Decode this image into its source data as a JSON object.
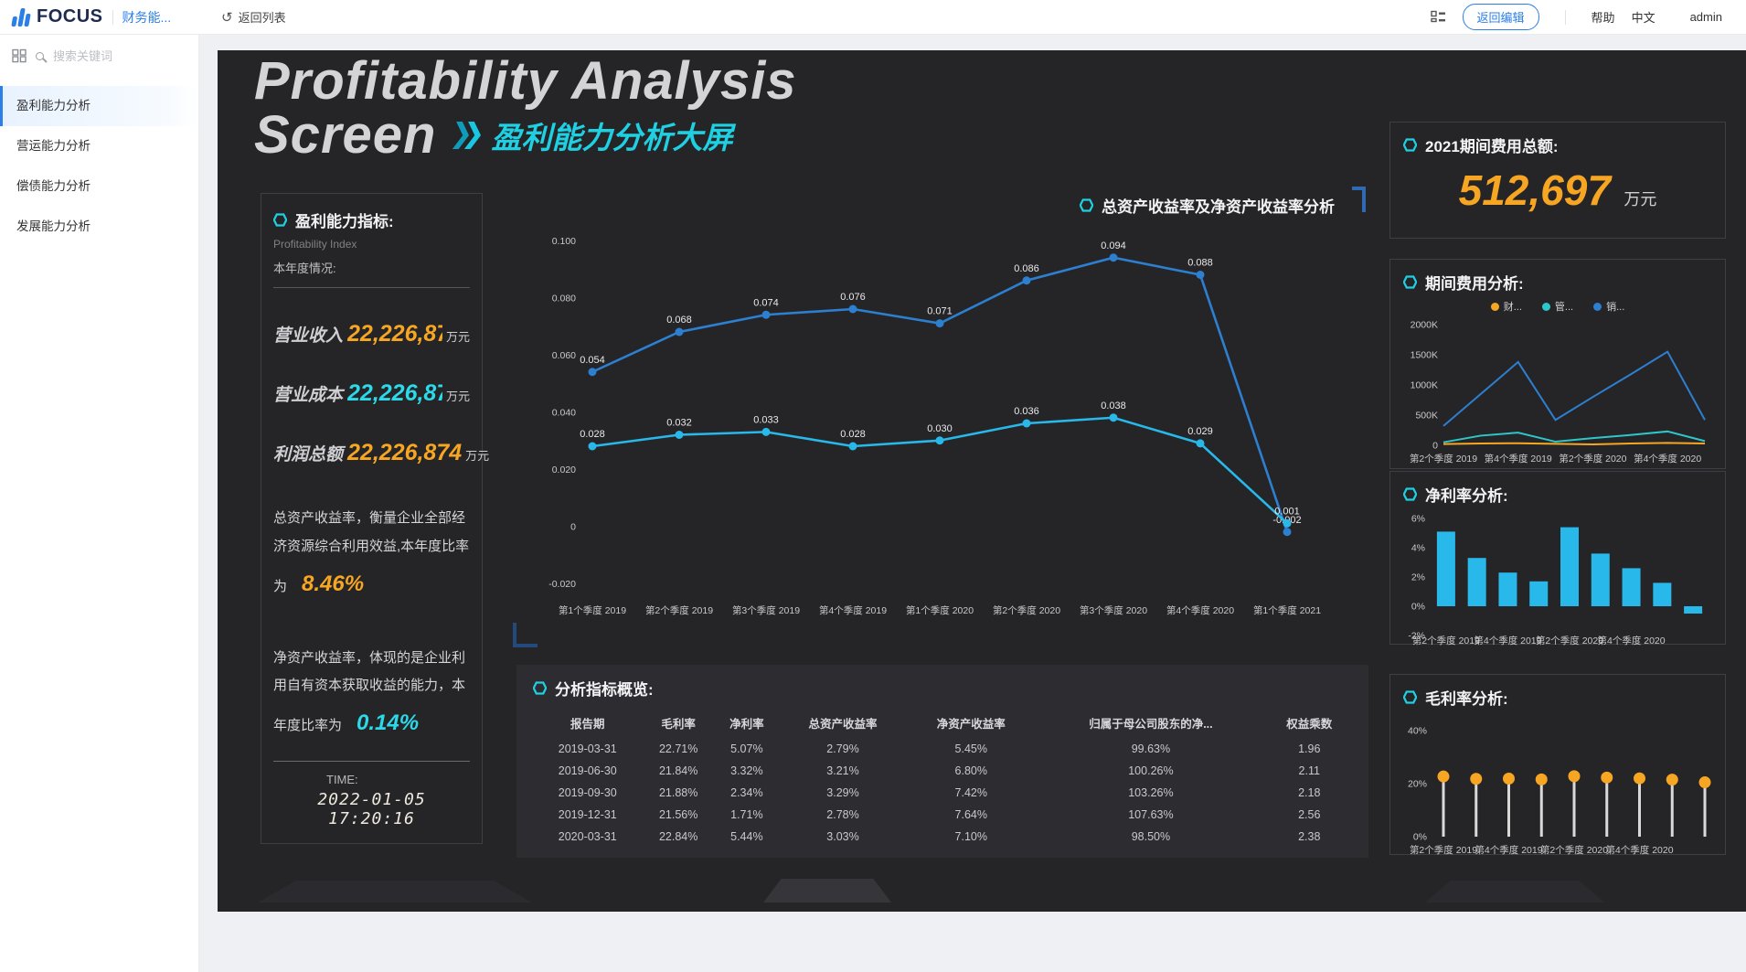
{
  "colors": {
    "accent_cyan": "#1fd0e2",
    "orange": "#f6a623",
    "line_blue": "#2d7fd0",
    "line_cyan": "#29b8ea",
    "line_teal": "#2ec7c9",
    "topbar_blue": "#2b7fe8"
  },
  "topbar": {
    "logo": "FOCUS",
    "workspace": "财务能...",
    "back_icon": "↺",
    "back_list": "返回列表",
    "edit_button": "返回编辑",
    "help": "帮助",
    "language": "中文",
    "user": "admin"
  },
  "sidebar": {
    "search_placeholder": "搜索关键词",
    "items": [
      {
        "label": "盈利能力分析",
        "active": true
      },
      {
        "label": "营运能力分析",
        "active": false
      },
      {
        "label": "偿债能力分析",
        "active": false
      },
      {
        "label": "发展能力分析",
        "active": false
      }
    ]
  },
  "dashboard": {
    "title_line1": "Profitability Analysis",
    "title_line2": "Screen",
    "subtitle_cn": "盈利能力分析大屏",
    "left_panel": {
      "title": "盈利能力指标:",
      "subtitle_en": "Profitability Index",
      "subtitle_cn": "本年度情况:",
      "metrics": [
        {
          "label": "营业收入",
          "value": "22,226,874",
          "unit": "万元"
        },
        {
          "label": "营业成本",
          "value": "22,226,874",
          "unit": "万元"
        },
        {
          "label": "利润总额",
          "value": "22,226,874",
          "unit": "万元"
        }
      ],
      "roa_text": "总资产收益率，衡量企业全部经济资源综合利用效益,本年度比率为",
      "roa_value": "8.46%",
      "roe_text": "净资产收益率，体现的是企业利用自有资本获取收益的能力，本年度比率为",
      "roe_value": "0.14%",
      "time_label": "TIME:",
      "time_value": "2022-01-05 17:20:16"
    },
    "main_chart_title": "总资产收益率及净资产收益率分析",
    "table": {
      "title": "分析指标概览:",
      "headers": [
        "报告期",
        "毛利率",
        "净利率",
        "总资产收益率",
        "净资产收益率",
        "归属于母公司股东的净...",
        "权益乘数"
      ],
      "rows": [
        [
          "2019-03-31",
          "22.71%",
          "5.07%",
          "2.79%",
          "5.45%",
          "99.63%",
          "1.96"
        ],
        [
          "2019-06-30",
          "21.84%",
          "3.32%",
          "3.21%",
          "6.80%",
          "100.26%",
          "2.11"
        ],
        [
          "2019-09-30",
          "21.88%",
          "2.34%",
          "3.29%",
          "7.42%",
          "103.26%",
          "2.18"
        ],
        [
          "2019-12-31",
          "21.56%",
          "1.71%",
          "2.78%",
          "7.64%",
          "107.63%",
          "2.56"
        ],
        [
          "2020-03-31",
          "22.84%",
          "5.44%",
          "3.03%",
          "7.10%",
          "98.50%",
          "2.38"
        ]
      ]
    },
    "right": {
      "total_title": "2021期间费用总额:",
      "total_value": "512,697",
      "total_unit": "万元",
      "expense_title": "期间费用分析:",
      "net_margin_title": "净利率分析:",
      "gross_margin_title": "毛利率分析:"
    }
  },
  "chart_data": [
    {
      "id": "roa-roe-lines",
      "type": "line",
      "title": "总资产收益率及净资产收益率分析",
      "categories": [
        "第1个季度 2019",
        "第2个季度 2019",
        "第3个季度 2019",
        "第4个季度 2019",
        "第1个季度 2020",
        "第2个季度 2020",
        "第3个季度 2020",
        "第4个季度 2020",
        "第1个季度 2021"
      ],
      "series": [
        {
          "name": "净资产收益率",
          "color": "#2d7fd0",
          "values": [
            0.054,
            0.068,
            0.074,
            0.076,
            0.071,
            0.086,
            0.094,
            0.088,
            -0.002
          ]
        },
        {
          "name": "总资产收益率",
          "color": "#29b8ea",
          "values": [
            0.028,
            0.032,
            0.033,
            0.028,
            0.03,
            0.036,
            0.038,
            0.029,
            0.001
          ]
        }
      ],
      "ylim": [
        -0.02,
        0.1
      ],
      "yticks": [
        "0.100",
        "0.080",
        "0.060",
        "0.040",
        "0.020",
        "0",
        "-0.020"
      ],
      "point_labels": true,
      "grid": false,
      "legend": "none"
    },
    {
      "id": "period-expenses",
      "type": "line",
      "title": "期间费用分析:",
      "x_tick_labels": [
        "第2个季度 2019",
        "第4个季度 2019",
        "第2个季度 2020",
        "第4个季度 2020"
      ],
      "unit": "K",
      "series": [
        {
          "name": "财务费用",
          "legend": "财...",
          "color": "#f6a623",
          "values": [
            20,
            30,
            35,
            25,
            15,
            30,
            40,
            30
          ]
        },
        {
          "name": "管理费用",
          "legend": "管...",
          "color": "#2ec7c9",
          "values": [
            50,
            160,
            210,
            60,
            120,
            170,
            230,
            70
          ]
        },
        {
          "name": "销售费用",
          "legend": "销...",
          "color": "#2d7fd0",
          "values": [
            320,
            850,
            1380,
            420,
            800,
            1170,
            1550,
            420
          ]
        }
      ],
      "ylim": [
        0,
        2000
      ],
      "yticks": [
        "2000K",
        "1500K",
        "1000K",
        "500K",
        "0"
      ],
      "grid": false,
      "legend_position": "top"
    },
    {
      "id": "net-margin-bars",
      "type": "bar",
      "title": "净利率分析:",
      "x_tick_labels": [
        "第2个季度 2019",
        "第4个季度 2019",
        "第2个季度 2020",
        "第4个季度 2020"
      ],
      "values": [
        5.1,
        3.3,
        2.3,
        1.7,
        5.4,
        3.6,
        2.6,
        1.6,
        -0.5
      ],
      "bar_color": "#29b8ea",
      "ylim": [
        -2,
        6
      ],
      "yticks": [
        "6%",
        "4%",
        "2%",
        "0%",
        "-2%"
      ],
      "grid": false
    },
    {
      "id": "gross-margin-lollipop",
      "type": "scatter",
      "title": "毛利率分析:",
      "x_tick_labels": [
        "第2个季度 2019",
        "第4个季度 2019",
        "第2个季度 2020",
        "第4个季度 2020"
      ],
      "values": [
        22.7,
        21.8,
        21.9,
        21.6,
        22.8,
        22.3,
        22.0,
        21.5,
        20.5
      ],
      "dot_color": "#f6a623",
      "stem_color": "#d9d9d9",
      "ylim": [
        0,
        40
      ],
      "yticks": [
        "40%",
        "20%",
        "0%"
      ],
      "grid": false
    }
  ]
}
